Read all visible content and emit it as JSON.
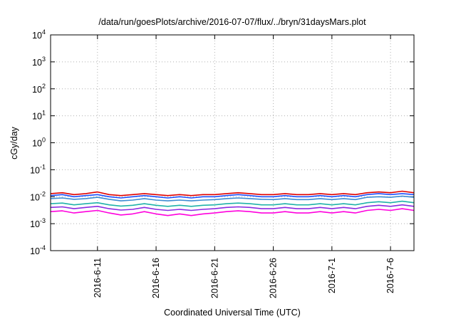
{
  "chart_data": {
    "type": "line",
    "title": "/data/run/goesPlots/archive/2016-07-07/flux/../bryn/31daysMars.plot",
    "xlabel": "Coordinated Universal Time (UTC)",
    "ylabel": "cGy/day",
    "yscale": "log",
    "ylim": [
      0.0001,
      10000
    ],
    "xlim": [
      "2016-06-07",
      "2016-07-08"
    ],
    "grid": true,
    "y_ticks": [
      {
        "base": "10",
        "exp": "-4"
      },
      {
        "base": "10",
        "exp": "-3"
      },
      {
        "base": "10",
        "exp": "-2"
      },
      {
        "base": "10",
        "exp": "-1"
      },
      {
        "base": "10",
        "exp": "0"
      },
      {
        "base": "10",
        "exp": "1"
      },
      {
        "base": "10",
        "exp": "2"
      },
      {
        "base": "10",
        "exp": "3"
      },
      {
        "base": "10",
        "exp": "4"
      }
    ],
    "x_ticks": [
      "2016-6-11",
      "2016-6-16",
      "2016-6-21",
      "2016-6-26",
      "2016-7-1",
      "2016-7-6"
    ],
    "x": [
      "2016-06-07",
      "2016-06-08",
      "2016-06-09",
      "2016-06-10",
      "2016-06-11",
      "2016-06-12",
      "2016-06-13",
      "2016-06-14",
      "2016-06-15",
      "2016-06-16",
      "2016-06-17",
      "2016-06-18",
      "2016-06-19",
      "2016-06-20",
      "2016-06-21",
      "2016-06-22",
      "2016-06-23",
      "2016-06-24",
      "2016-06-25",
      "2016-06-26",
      "2016-06-27",
      "2016-06-28",
      "2016-06-29",
      "2016-06-30",
      "2016-07-01",
      "2016-07-02",
      "2016-07-03",
      "2016-07-04",
      "2016-07-05",
      "2016-07-06",
      "2016-07-07",
      "2016-07-08"
    ],
    "series": [
      {
        "color": "#e00000",
        "values": [
          0.013,
          0.014,
          0.012,
          0.013,
          0.015,
          0.012,
          0.011,
          0.012,
          0.013,
          0.012,
          0.011,
          0.012,
          0.011,
          0.012,
          0.012,
          0.013,
          0.014,
          0.013,
          0.012,
          0.012,
          0.013,
          0.012,
          0.012,
          0.013,
          0.012,
          0.013,
          0.012,
          0.014,
          0.015,
          0.014,
          0.016,
          0.014
        ]
      },
      {
        "color": "#1e50ff",
        "values": [
          0.011,
          0.012,
          0.01,
          0.011,
          0.012,
          0.01,
          0.009,
          0.01,
          0.011,
          0.01,
          0.009,
          0.01,
          0.009,
          0.01,
          0.01,
          0.011,
          0.012,
          0.011,
          0.01,
          0.01,
          0.011,
          0.01,
          0.01,
          0.011,
          0.01,
          0.011,
          0.01,
          0.012,
          0.013,
          0.012,
          0.013,
          0.012
        ]
      },
      {
        "color": "#3c8cd2",
        "values": [
          0.0085,
          0.009,
          0.008,
          0.0085,
          0.0095,
          0.008,
          0.007,
          0.0075,
          0.0085,
          0.0075,
          0.007,
          0.0075,
          0.007,
          0.0075,
          0.0078,
          0.0085,
          0.009,
          0.0085,
          0.008,
          0.0078,
          0.0085,
          0.0078,
          0.0078,
          0.0085,
          0.0078,
          0.0085,
          0.0078,
          0.0095,
          0.01,
          0.0095,
          0.0105,
          0.0095
        ]
      },
      {
        "color": "#20b2aa",
        "values": [
          0.0055,
          0.0058,
          0.005,
          0.0055,
          0.006,
          0.005,
          0.0045,
          0.0048,
          0.0055,
          0.0048,
          0.0044,
          0.0048,
          0.0044,
          0.0048,
          0.005,
          0.0055,
          0.0058,
          0.0055,
          0.005,
          0.005,
          0.0055,
          0.005,
          0.005,
          0.0055,
          0.005,
          0.0055,
          0.005,
          0.006,
          0.0065,
          0.006,
          0.0068,
          0.006
        ]
      },
      {
        "color": "#8a2be2",
        "values": [
          0.004,
          0.0042,
          0.0036,
          0.004,
          0.0044,
          0.0036,
          0.0032,
          0.0034,
          0.004,
          0.0034,
          0.0031,
          0.0034,
          0.0031,
          0.0034,
          0.0036,
          0.004,
          0.0042,
          0.004,
          0.0036,
          0.0036,
          0.004,
          0.0036,
          0.0036,
          0.004,
          0.0036,
          0.004,
          0.0036,
          0.0044,
          0.0048,
          0.0044,
          0.005,
          0.0044
        ]
      },
      {
        "color": "#ff00dd",
        "values": [
          0.0028,
          0.003,
          0.0025,
          0.0028,
          0.0031,
          0.0025,
          0.0021,
          0.0023,
          0.0028,
          0.0023,
          0.002,
          0.0023,
          0.002,
          0.0023,
          0.0025,
          0.0028,
          0.003,
          0.0028,
          0.0025,
          0.0025,
          0.0028,
          0.0025,
          0.0025,
          0.0028,
          0.0025,
          0.0028,
          0.0025,
          0.0031,
          0.0034,
          0.0031,
          0.0036,
          0.0031
        ]
      }
    ]
  }
}
